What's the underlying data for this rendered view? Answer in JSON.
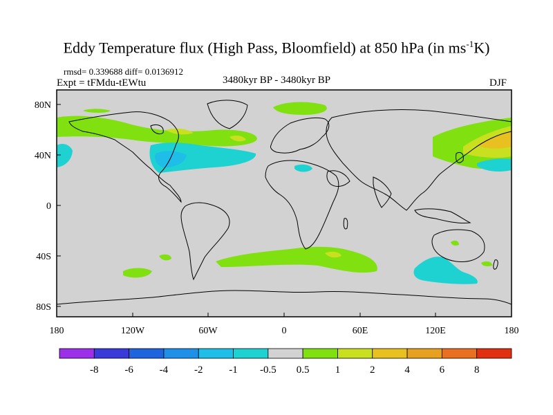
{
  "title": {
    "main": "Eddy Temperature flux (High Pass, Bloomfield) at 850 hPa (in ms",
    "sup": "-1",
    "tail": "K)"
  },
  "stats": "rmsd= 0.339688 diff= 0.0136912",
  "expt": "Expt = tFMdu-tEWtu",
  "period": "3480kyr BP - 3480kyr BP",
  "season": "DJF",
  "axes": {
    "x_ticks": [
      "180",
      "120W",
      "60W",
      "0",
      "60E",
      "120E",
      "180"
    ],
    "y_ticks": [
      "80N",
      "40N",
      "0",
      "40S",
      "80S"
    ]
  },
  "colorbar": {
    "colors": [
      "#9b30e8",
      "#3a3ad8",
      "#1e64dc",
      "#1e90e8",
      "#1ebee8",
      "#1ed2d2",
      "#d2d2d2",
      "#80e010",
      "#c8e020",
      "#e8c020",
      "#e8a020",
      "#e87020",
      "#e03010"
    ],
    "labels": [
      "-8",
      "-6",
      "-4",
      "-2",
      "-1",
      "-0.5",
      "0.5",
      "1",
      "2",
      "4",
      "6",
      "8"
    ]
  },
  "colors": {
    "land_background": "#d2d2d2",
    "coast": "#000000"
  }
}
